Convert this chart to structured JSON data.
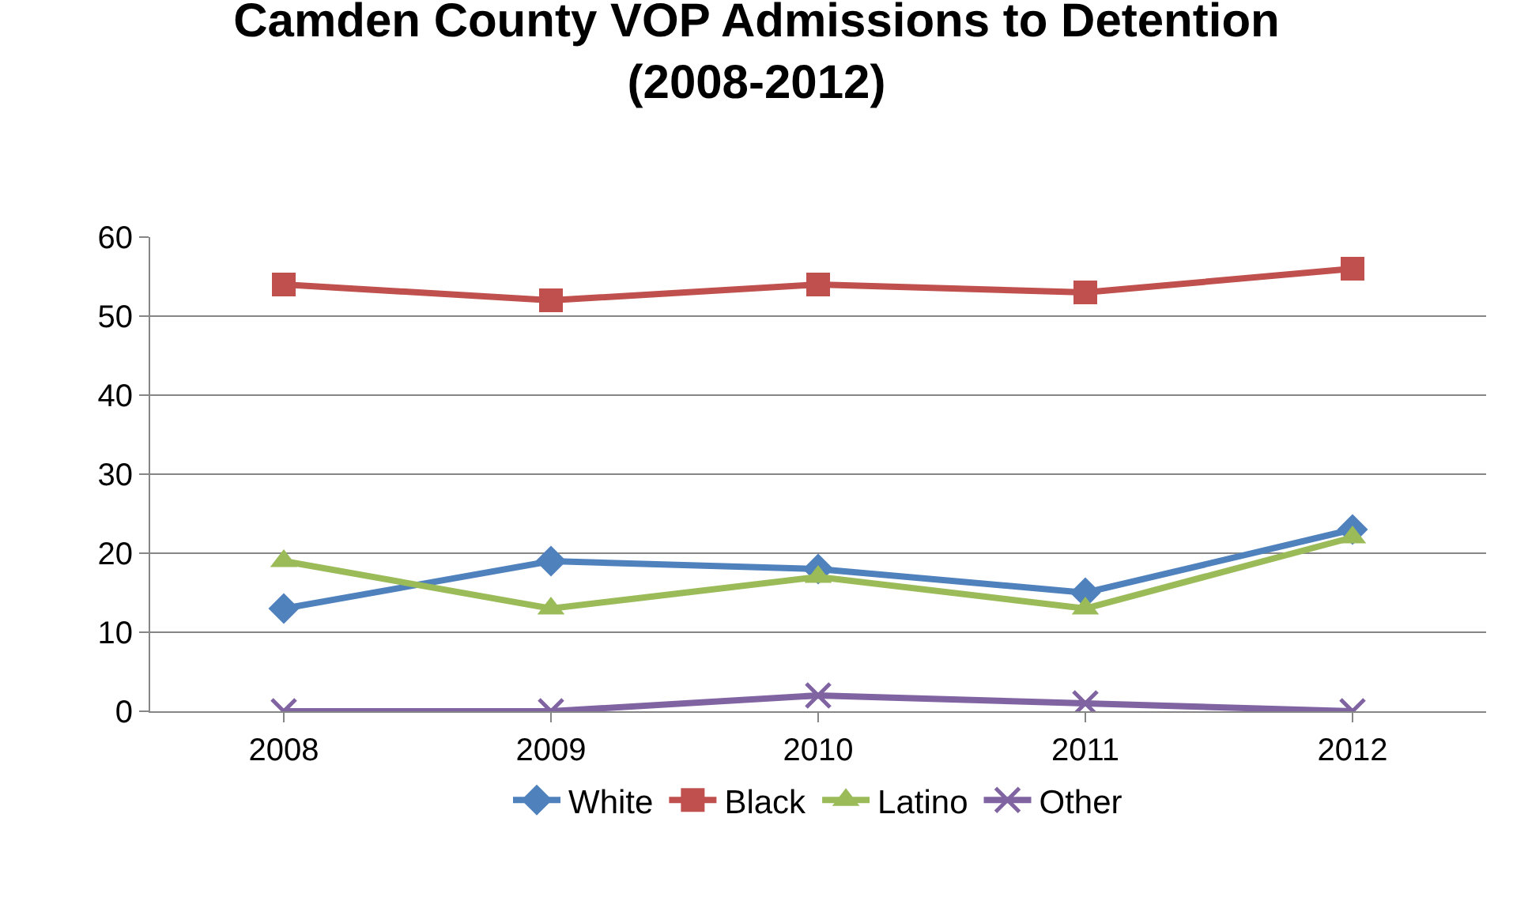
{
  "chart_data": {
    "type": "line",
    "title": "Camden County VOP Admissions to Detention (2008-2012)",
    "categories": [
      "2008",
      "2009",
      "2010",
      "2011",
      "2012"
    ],
    "series": [
      {
        "name": "White",
        "color": "#4f81bd",
        "marker": "diamond",
        "values": [
          13,
          19,
          18,
          15,
          23
        ]
      },
      {
        "name": "Black",
        "color": "#c0504d",
        "marker": "square",
        "values": [
          54,
          52,
          54,
          53,
          56
        ]
      },
      {
        "name": "Latino",
        "color": "#9bbb59",
        "marker": "triangle",
        "values": [
          19,
          13,
          17,
          13,
          22
        ]
      },
      {
        "name": "Other",
        "color": "#8064a2",
        "marker": "cross",
        "values": [
          0,
          0,
          2,
          1,
          0
        ]
      }
    ],
    "ylim": [
      0,
      60
    ],
    "yticks": [
      0,
      10,
      20,
      30,
      40,
      50,
      60
    ],
    "grid": "y",
    "legend": "bottom",
    "line_style": "solid"
  }
}
